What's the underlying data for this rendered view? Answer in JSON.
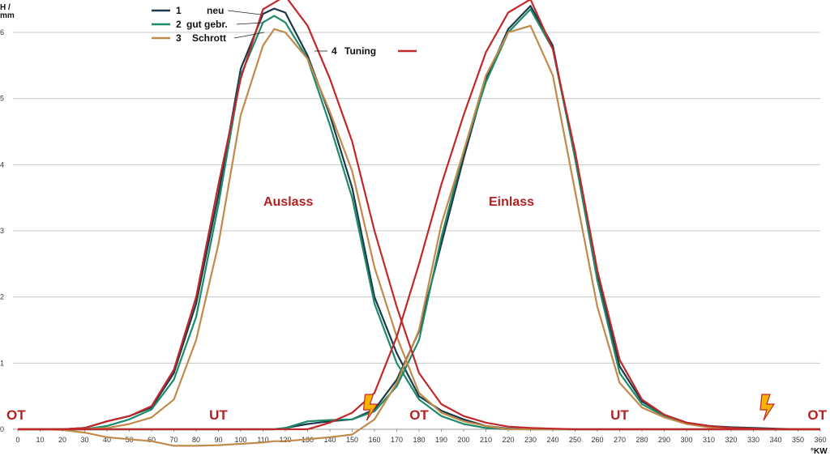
{
  "chart_data": {
    "type": "line",
    "xlabel": "°KW",
    "ylabel": "H / mm",
    "xlim": [
      0,
      360
    ],
    "ylim": [
      0,
      6.4
    ],
    "grid": true,
    "x_ticks": [
      "0",
      "10",
      "20",
      "30",
      "40",
      "50",
      "60",
      "70",
      "80",
      "90",
      "100",
      "110",
      "120",
      "130",
      "140",
      "150",
      "160",
      "170",
      "180",
      "190",
      "200",
      "210",
      "220",
      "230",
      "240",
      "250",
      "260",
      "270",
      "280",
      "290",
      "300",
      "310",
      "320",
      "330",
      "340",
      "350",
      "360"
    ],
    "y_ticks": [
      "0",
      "1",
      "2",
      "3",
      "4",
      "5",
      "6"
    ],
    "legend": {
      "position": "top-left",
      "entries": [
        {
          "num": "1",
          "label": "neu"
        },
        {
          "num": "2",
          "label": "gut gebr."
        },
        {
          "num": "3",
          "label": "Schrott"
        },
        {
          "num": "4",
          "label": "Tuning"
        }
      ]
    },
    "annotations": {
      "auslass": "Auslass",
      "einlass": "Einlass",
      "phases": [
        {
          "text": "OT",
          "x": 0
        },
        {
          "text": "UT",
          "x": 90
        },
        {
          "text": "OT",
          "x": 180
        },
        {
          "text": "UT",
          "x": 270
        },
        {
          "text": "OT",
          "x": 360
        }
      ],
      "lightning_x": [
        158,
        336
      ]
    },
    "series": [
      {
        "name": "neu",
        "color": "#1a3a4a",
        "x": [
          0,
          10,
          20,
          30,
          40,
          50,
          60,
          70,
          80,
          90,
          100,
          110,
          115,
          120,
          130,
          140,
          150,
          160,
          170,
          180,
          190,
          200,
          210,
          220,
          230,
          240,
          250,
          260,
          270,
          280,
          290,
          300,
          310,
          320,
          330,
          340,
          350,
          360
        ],
        "auslass": [
          0,
          0,
          0,
          0.02,
          0.12,
          0.2,
          0.33,
          0.85,
          1.9,
          3.55,
          5.45,
          6.28,
          6.36,
          6.3,
          5.65,
          4.75,
          3.65,
          2.0,
          1.15,
          0.5,
          0.28,
          0.15,
          0.05,
          0.01,
          0,
          0,
          0,
          0,
          0,
          0,
          0,
          0,
          0,
          0,
          0,
          0,
          0,
          0
        ],
        "einlass": [
          0,
          0,
          0,
          0,
          0,
          0,
          0,
          0,
          0,
          0,
          0,
          0,
          0,
          0.02,
          0.08,
          0.12,
          0.15,
          0.3,
          0.75,
          1.48,
          2.8,
          4.1,
          5.3,
          6.05,
          6.4,
          5.8,
          4.1,
          2.3,
          0.95,
          0.42,
          0.22,
          0.1,
          0.05,
          0.03,
          0.02,
          0.01,
          0,
          0
        ]
      },
      {
        "name": "gut gebr.",
        "color": "#1e8a6a",
        "x": [
          0,
          10,
          20,
          30,
          40,
          50,
          60,
          70,
          80,
          90,
          100,
          110,
          115,
          120,
          130,
          140,
          150,
          160,
          170,
          180,
          190,
          200,
          210,
          220,
          230,
          240,
          250,
          260,
          270,
          280,
          290,
          300,
          310,
          320,
          330,
          340,
          350,
          360
        ],
        "auslass": [
          0,
          0,
          0,
          0,
          0.05,
          0.15,
          0.3,
          0.75,
          1.7,
          3.4,
          5.35,
          6.15,
          6.25,
          6.15,
          5.6,
          4.6,
          3.5,
          1.9,
          1.0,
          0.45,
          0.2,
          0.08,
          0.02,
          0,
          0,
          0,
          0,
          0,
          0,
          0,
          0,
          0,
          0,
          0,
          0,
          0,
          0,
          0
        ],
        "einlass": [
          0,
          0,
          0,
          0,
          0,
          0,
          0,
          0,
          0,
          0,
          0,
          0,
          0,
          0.02,
          0.12,
          0.14,
          0.15,
          0.27,
          0.65,
          1.35,
          2.9,
          4.2,
          5.25,
          6.0,
          6.35,
          5.75,
          4.1,
          2.25,
          0.85,
          0.38,
          0.2,
          0.1,
          0.05,
          0.02,
          0,
          0,
          0,
          0
        ]
      },
      {
        "name": "Schrott",
        "color": "#c08a4a",
        "x": [
          0,
          10,
          20,
          30,
          40,
          50,
          60,
          70,
          80,
          90,
          100,
          110,
          115,
          120,
          130,
          140,
          150,
          160,
          170,
          180,
          190,
          200,
          210,
          220,
          230,
          240,
          250,
          260,
          270,
          280,
          290,
          300,
          310,
          320,
          330,
          340,
          350,
          360
        ],
        "auslass": [
          0,
          0,
          0,
          0,
          0.02,
          0.08,
          0.18,
          0.45,
          1.35,
          2.8,
          4.75,
          5.8,
          6.05,
          6.0,
          5.6,
          4.8,
          3.9,
          2.45,
          1.4,
          0.55,
          0.25,
          0.12,
          0.05,
          0,
          0,
          0,
          0,
          0,
          0,
          0,
          0,
          0,
          0,
          0,
          0,
          0,
          0,
          0
        ],
        "einlass": [
          0,
          0,
          -0.01,
          -0.05,
          -0.12,
          -0.15,
          -0.18,
          -0.25,
          -0.25,
          -0.24,
          -0.22,
          -0.2,
          -0.18,
          -0.18,
          -0.15,
          -0.12,
          -0.08,
          0.15,
          0.7,
          1.5,
          3.1,
          4.2,
          5.35,
          6.0,
          6.1,
          5.35,
          3.6,
          1.85,
          0.7,
          0.33,
          0.18,
          0.08,
          0.03,
          0,
          0,
          0,
          0,
          0
        ]
      },
      {
        "name": "Tuning",
        "color": "#c0282a",
        "x": [
          0,
          10,
          20,
          30,
          40,
          50,
          60,
          70,
          80,
          90,
          100,
          110,
          115,
          120,
          130,
          140,
          150,
          160,
          170,
          180,
          190,
          200,
          210,
          220,
          230,
          240,
          250,
          260,
          270,
          280,
          290,
          300,
          310,
          320,
          330,
          340,
          350,
          360
        ],
        "auslass": [
          0,
          0,
          0,
          0.02,
          0.12,
          0.2,
          0.35,
          0.9,
          2.0,
          3.7,
          5.3,
          6.35,
          6.45,
          6.55,
          6.1,
          5.3,
          4.35,
          3.0,
          1.85,
          0.85,
          0.38,
          0.2,
          0.1,
          0.04,
          0.02,
          0.01,
          0,
          0,
          0,
          0,
          0,
          0,
          0,
          0,
          0,
          0,
          0,
          0
        ],
        "einlass": [
          0,
          0,
          0,
          0,
          0,
          0,
          0,
          0,
          0,
          0,
          0,
          0,
          0,
          0,
          0,
          0.1,
          0.25,
          0.55,
          1.4,
          2.5,
          3.7,
          4.75,
          5.7,
          6.3,
          6.5,
          5.75,
          4.2,
          2.4,
          1.05,
          0.45,
          0.22,
          0.1,
          0.05,
          0.02,
          0.01,
          0,
          0,
          0
        ]
      }
    ]
  }
}
